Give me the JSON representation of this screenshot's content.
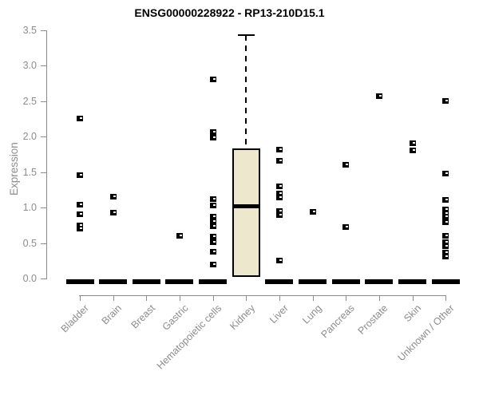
{
  "chart_data": {
    "type": "boxplot",
    "title": "ENSG00000228922 - RP13-210D15.1",
    "ylabel": "Expression",
    "xlabel": "",
    "ylim": [
      0,
      3.5
    ],
    "yticks": [
      "0.0",
      "0.5",
      "1.0",
      "1.5",
      "2.0",
      "2.5",
      "3.0",
      "3.5"
    ],
    "grid": false,
    "legend": null,
    "categories": [
      "Bladder",
      "Brain",
      "Breast",
      "Gastric",
      "Hematopoietic cells",
      "Kidney",
      "Liver",
      "Lung",
      "Pancreas",
      "Prostate",
      "Skin",
      "Unknown / Other"
    ],
    "boxes": [
      {
        "category": "Bladder",
        "median": 0,
        "q1": 0,
        "q3": 0,
        "whisker_low": 0,
        "whisker_high": 0,
        "outliers": [
          2.25,
          1.46,
          1.04,
          0.9,
          0.75,
          0.7
        ]
      },
      {
        "category": "Brain",
        "median": 0,
        "q1": 0,
        "q3": 0,
        "whisker_low": 0,
        "whisker_high": 0,
        "outliers": [
          1.15,
          0.93
        ]
      },
      {
        "category": "Breast",
        "median": 0,
        "q1": 0,
        "q3": 0,
        "whisker_low": 0,
        "whisker_high": 0,
        "outliers": []
      },
      {
        "category": "Gastric",
        "median": 0,
        "q1": 0,
        "q3": 0,
        "whisker_low": 0,
        "whisker_high": 0,
        "outliers": [
          0.6
        ]
      },
      {
        "category": "Hematopoietic cells",
        "median": 0,
        "q1": 0,
        "q3": 0,
        "whisker_low": 0,
        "whisker_high": 0,
        "outliers": [
          2.8,
          2.06,
          1.98,
          1.12,
          1.03,
          0.87,
          0.8,
          0.74,
          0.59,
          0.51,
          0.38,
          0.2
        ]
      },
      {
        "category": "Kidney",
        "median": 1.02,
        "q1": 0.02,
        "q3": 1.83,
        "whisker_low": 0.02,
        "whisker_high": 3.43,
        "outliers": []
      },
      {
        "category": "Liver",
        "median": 0,
        "q1": 0,
        "q3": 0,
        "whisker_low": 0,
        "whisker_high": 0,
        "outliers": [
          1.81,
          1.66,
          1.3,
          1.2,
          1.14,
          0.95,
          0.89,
          0.25
        ]
      },
      {
        "category": "Lung",
        "median": 0,
        "q1": 0,
        "q3": 0,
        "whisker_low": 0,
        "whisker_high": 0,
        "outliers": [
          0.94
        ]
      },
      {
        "category": "Pancreas",
        "median": 0,
        "q1": 0,
        "q3": 0,
        "whisker_low": 0,
        "whisker_high": 0,
        "outliers": [
          1.6,
          0.72
        ]
      },
      {
        "category": "Prostate",
        "median": 0,
        "q1": 0,
        "q3": 0,
        "whisker_low": 0,
        "whisker_high": 0,
        "outliers": [
          2.57
        ]
      },
      {
        "category": "Skin",
        "median": 0,
        "q1": 0,
        "q3": 0,
        "whisker_low": 0,
        "whisker_high": 0,
        "outliers": [
          1.91,
          1.8
        ]
      },
      {
        "category": "Unknown / Other",
        "median": 0,
        "q1": 0,
        "q3": 0,
        "whisker_low": 0,
        "whisker_high": 0,
        "outliers": [
          2.5,
          1.48,
          1.11,
          0.97,
          0.92,
          0.87,
          0.79,
          0.6,
          0.51,
          0.46,
          0.36,
          0.31
        ]
      }
    ],
    "colors": {
      "box_fill": "#ECE7CD",
      "box_border": "#000000",
      "median": "#000000",
      "points": "#000000",
      "axis": "#8C8C8C",
      "axis_text": "#8C8C8C",
      "title_text": "#000000",
      "background": "#FFFFFF"
    }
  }
}
